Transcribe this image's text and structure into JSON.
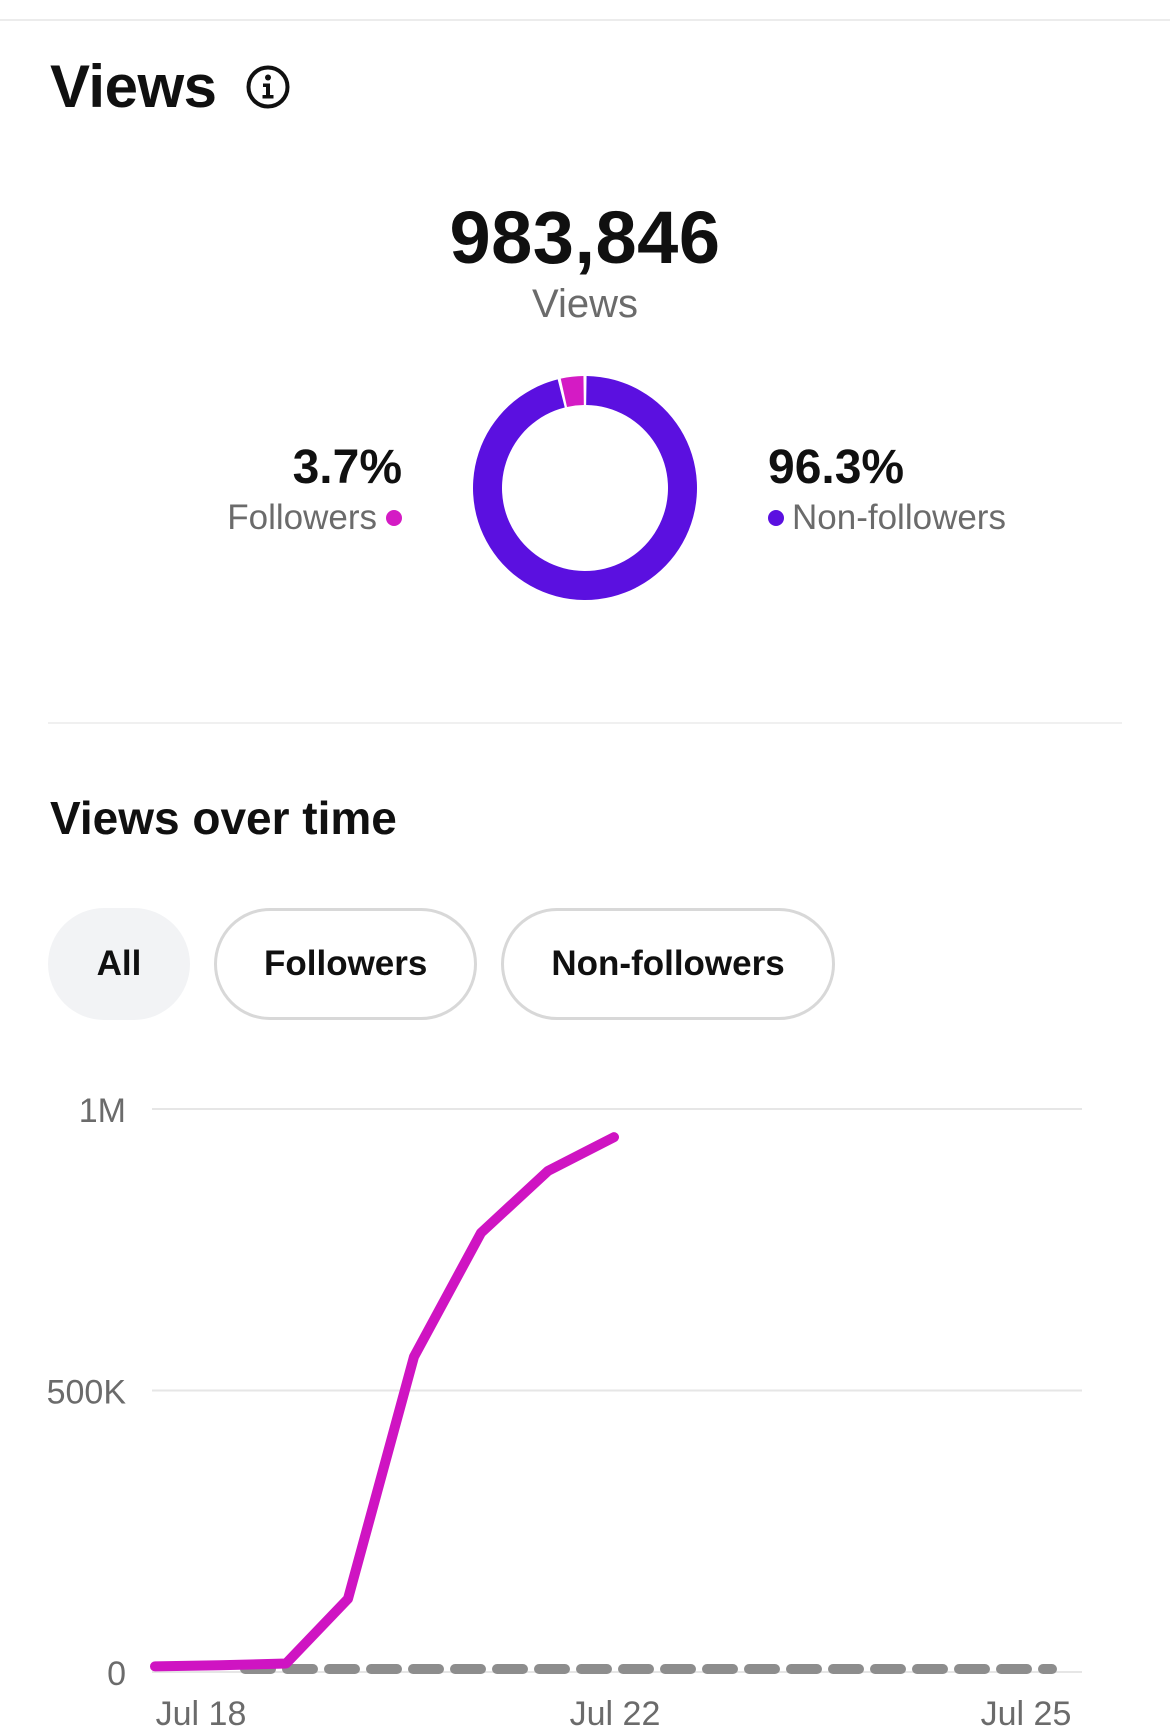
{
  "header": {
    "title": "Views",
    "info_icon": "info-circle-icon"
  },
  "summary": {
    "total_value": "983,846",
    "total_label": "Views"
  },
  "breakdown": {
    "followers_value": "3.7%",
    "followers_label": "Followers",
    "followers_fraction": 0.037,
    "non_followers_value": "96.3%",
    "non_followers_label": "Non-followers",
    "non_followers_fraction": 0.963,
    "colors": {
      "followers": "#d41bc4",
      "non_followers": "#5b10e0"
    }
  },
  "views_over_time": {
    "title": "Views over time",
    "filters": [
      {
        "label": "All",
        "selected": true
      },
      {
        "label": "Followers",
        "selected": false
      },
      {
        "label": "Non-followers",
        "selected": false
      }
    ]
  },
  "chart_data": {
    "type": "line",
    "title": "",
    "xlabel": "",
    "ylabel": "",
    "x_ticks": [
      "Jul 18",
      "Jul 22",
      "Jul 25"
    ],
    "y_ticks": [
      "0",
      "500K",
      "1M"
    ],
    "ylim": [
      0,
      1000000
    ],
    "xlim": [
      "Jul 17.5",
      "Jul 25.5"
    ],
    "grid": true,
    "series": [
      {
        "color": "#cf14c2",
        "style": "solid",
        "x": [
          "Jul 17",
          "Jul 17.5",
          "Jul 18",
          "Jul 18.5",
          "Jul 19",
          "Jul 19.5",
          "Jul 20",
          "Jul 20.5",
          "Jul 21"
        ],
        "values": [
          10000,
          12000,
          15000,
          130000,
          560000,
          780000,
          890000,
          950000,
          950000
        ]
      },
      {
        "color": "#8d8d8d",
        "style": "dashed",
        "x": [
          "Jul 18",
          "Jul 25"
        ],
        "values": [
          0,
          0
        ]
      }
    ]
  }
}
